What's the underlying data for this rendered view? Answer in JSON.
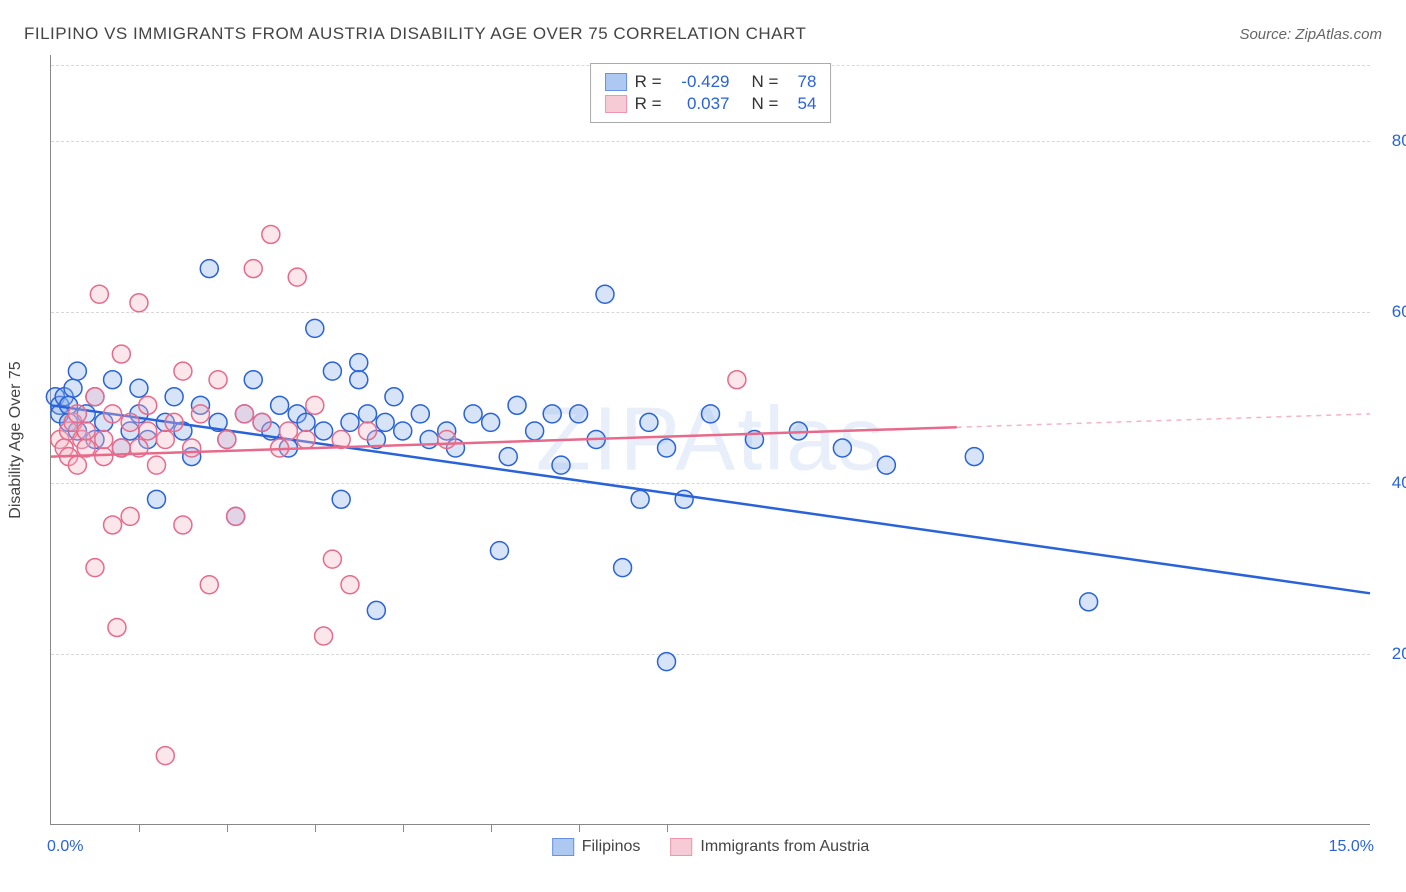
{
  "title": "FILIPINO VS IMMIGRANTS FROM AUSTRIA DISABILITY AGE OVER 75 CORRELATION CHART",
  "source": "Source: ZipAtlas.com",
  "watermark": "ZIPAtlas",
  "y_axis_title": "Disability Age Over 75",
  "chart": {
    "type": "scatter",
    "background_color": "#ffffff",
    "grid_color": "#d8d8d8",
    "axis_color": "#888888",
    "xlim": [
      0,
      15
    ],
    "ylim": [
      0,
      90
    ],
    "x_ticks": [
      0,
      1,
      2,
      3,
      4,
      5,
      6,
      7,
      15
    ],
    "x_tick_labels": {
      "0": "0.0%",
      "15": "15.0%"
    },
    "x_label_color": "#2962d9",
    "y_gridlines": [
      20,
      40,
      60,
      80
    ],
    "y_tick_labels": [
      "20.0%",
      "40.0%",
      "60.0%",
      "80.0%"
    ],
    "y_label_color": "#2962d9",
    "marker_radius": 9,
    "marker_stroke_width": 1.5,
    "marker_fill_opacity": 0.35,
    "trend_line_width": 2.5,
    "series": [
      {
        "name": "Filipinos",
        "color_stroke": "#2962d9",
        "color_fill": "#8cb3ec",
        "R": "-0.429",
        "N": "78",
        "trend": {
          "x1": 0,
          "y1": 49,
          "x2": 15,
          "y2": 27,
          "solid_until_x": 15
        },
        "points": [
          [
            0.05,
            50
          ],
          [
            0.1,
            49
          ],
          [
            0.1,
            48
          ],
          [
            0.15,
            50
          ],
          [
            0.2,
            47
          ],
          [
            0.2,
            49
          ],
          [
            0.25,
            51
          ],
          [
            0.3,
            46
          ],
          [
            0.3,
            53
          ],
          [
            0.4,
            48
          ],
          [
            0.5,
            45
          ],
          [
            0.5,
            50
          ],
          [
            0.6,
            47
          ],
          [
            0.7,
            52
          ],
          [
            0.8,
            44
          ],
          [
            0.9,
            46
          ],
          [
            1.0,
            48
          ],
          [
            1.0,
            51
          ],
          [
            1.1,
            45
          ],
          [
            1.2,
            38
          ],
          [
            1.3,
            47
          ],
          [
            1.4,
            50
          ],
          [
            1.5,
            46
          ],
          [
            1.6,
            43
          ],
          [
            1.7,
            49
          ],
          [
            1.8,
            65
          ],
          [
            1.9,
            47
          ],
          [
            2.0,
            45
          ],
          [
            2.1,
            36
          ],
          [
            2.2,
            48
          ],
          [
            2.3,
            52
          ],
          [
            2.4,
            47
          ],
          [
            2.5,
            46
          ],
          [
            2.6,
            49
          ],
          [
            2.7,
            44
          ],
          [
            2.8,
            48
          ],
          [
            2.9,
            47
          ],
          [
            3.0,
            58
          ],
          [
            3.1,
            46
          ],
          [
            3.2,
            53
          ],
          [
            3.3,
            38
          ],
          [
            3.4,
            47
          ],
          [
            3.5,
            54
          ],
          [
            3.5,
            52
          ],
          [
            3.6,
            48
          ],
          [
            3.7,
            45
          ],
          [
            3.7,
            25
          ],
          [
            3.8,
            47
          ],
          [
            3.9,
            50
          ],
          [
            4.0,
            46
          ],
          [
            4.2,
            48
          ],
          [
            4.3,
            45
          ],
          [
            4.5,
            46
          ],
          [
            4.6,
            44
          ],
          [
            4.8,
            48
          ],
          [
            5.0,
            47
          ],
          [
            5.1,
            32
          ],
          [
            5.2,
            43
          ],
          [
            5.3,
            49
          ],
          [
            5.5,
            46
          ],
          [
            5.7,
            48
          ],
          [
            5.8,
            42
          ],
          [
            6.0,
            48
          ],
          [
            6.2,
            45
          ],
          [
            6.3,
            62
          ],
          [
            6.5,
            30
          ],
          [
            6.7,
            38
          ],
          [
            6.8,
            47
          ],
          [
            7.0,
            44
          ],
          [
            7.0,
            19
          ],
          [
            7.2,
            38
          ],
          [
            7.5,
            48
          ],
          [
            8.0,
            45
          ],
          [
            8.5,
            46
          ],
          [
            9.0,
            44
          ],
          [
            9.5,
            42
          ],
          [
            10.5,
            43
          ],
          [
            11.8,
            26
          ]
        ]
      },
      {
        "name": "Immigrants from Austria",
        "color_stroke": "#e86a8a",
        "color_fill": "#f4b6c6",
        "R": "0.037",
        "N": "54",
        "trend": {
          "x1": 0,
          "y1": 43,
          "x2": 15,
          "y2": 48,
          "solid_until_x": 10.3
        },
        "points": [
          [
            0.1,
            45
          ],
          [
            0.15,
            44
          ],
          [
            0.2,
            46
          ],
          [
            0.2,
            43
          ],
          [
            0.25,
            47
          ],
          [
            0.3,
            42
          ],
          [
            0.3,
            48
          ],
          [
            0.35,
            45
          ],
          [
            0.4,
            44
          ],
          [
            0.4,
            46
          ],
          [
            0.5,
            50
          ],
          [
            0.5,
            30
          ],
          [
            0.55,
            62
          ],
          [
            0.6,
            43
          ],
          [
            0.6,
            45
          ],
          [
            0.7,
            48
          ],
          [
            0.7,
            35
          ],
          [
            0.75,
            23
          ],
          [
            0.8,
            44
          ],
          [
            0.8,
            55
          ],
          [
            0.9,
            47
          ],
          [
            0.9,
            36
          ],
          [
            1.0,
            61
          ],
          [
            1.0,
            44
          ],
          [
            1.1,
            46
          ],
          [
            1.1,
            49
          ],
          [
            1.2,
            42
          ],
          [
            1.3,
            45
          ],
          [
            1.3,
            8
          ],
          [
            1.4,
            47
          ],
          [
            1.5,
            35
          ],
          [
            1.5,
            53
          ],
          [
            1.6,
            44
          ],
          [
            1.7,
            48
          ],
          [
            1.8,
            28
          ],
          [
            1.9,
            52
          ],
          [
            2.0,
            45
          ],
          [
            2.1,
            36
          ],
          [
            2.2,
            48
          ],
          [
            2.3,
            65
          ],
          [
            2.4,
            47
          ],
          [
            2.5,
            69
          ],
          [
            2.6,
            44
          ],
          [
            2.7,
            46
          ],
          [
            2.8,
            64
          ],
          [
            2.9,
            45
          ],
          [
            3.0,
            49
          ],
          [
            3.1,
            22
          ],
          [
            3.2,
            31
          ],
          [
            3.3,
            45
          ],
          [
            3.4,
            28
          ],
          [
            3.6,
            46
          ],
          [
            4.5,
            45
          ],
          [
            7.8,
            52
          ]
        ]
      }
    ]
  },
  "legend_stats_color": "#2962d9",
  "bottom_legend": [
    {
      "label": "Filipinos",
      "stroke": "#2962d9",
      "fill": "#8cb3ec"
    },
    {
      "label": "Immigrants from Austria",
      "stroke": "#e86a8a",
      "fill": "#f4b6c6"
    }
  ]
}
